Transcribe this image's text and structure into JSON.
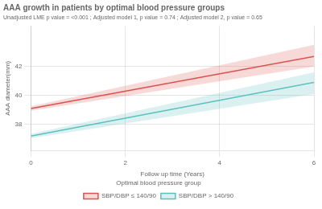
{
  "chart_data": {
    "type": "line",
    "title": "AAA growth in patients by optimal blood pressure groups",
    "subtitle": "Unadjusted LME p value = <0.001 ; Adjusted model 1, p value = 0.74 ; Adjusted model 2, p value = 0.65",
    "x_label": "Follow up time (Years)",
    "y_label": "AAA diameter(mm)",
    "x": [
      0,
      6
    ],
    "series": [
      {
        "name": "SBP/DBP ≤ 140/90",
        "color": "#d9534f",
        "values": [
          39.1,
          42.7
        ],
        "ci_lower": [
          38.95,
          42.0
        ],
        "ci_upper": [
          39.25,
          43.5
        ]
      },
      {
        "name": "SBP/DBP > 140/90",
        "color": "#5bc0be",
        "values": [
          37.2,
          40.9
        ],
        "ci_lower": [
          37.05,
          40.1
        ],
        "ci_upper": [
          37.35,
          41.6
        ]
      }
    ],
    "xlim": [
      0,
      6
    ],
    "ylim": [
      36.2,
      44.8
    ],
    "xticks": [
      0,
      2,
      4,
      6
    ],
    "yticks": [
      38,
      40,
      42
    ],
    "grid": true,
    "legend": "bottom",
    "legend_title": "Optimal blood pressure group"
  }
}
